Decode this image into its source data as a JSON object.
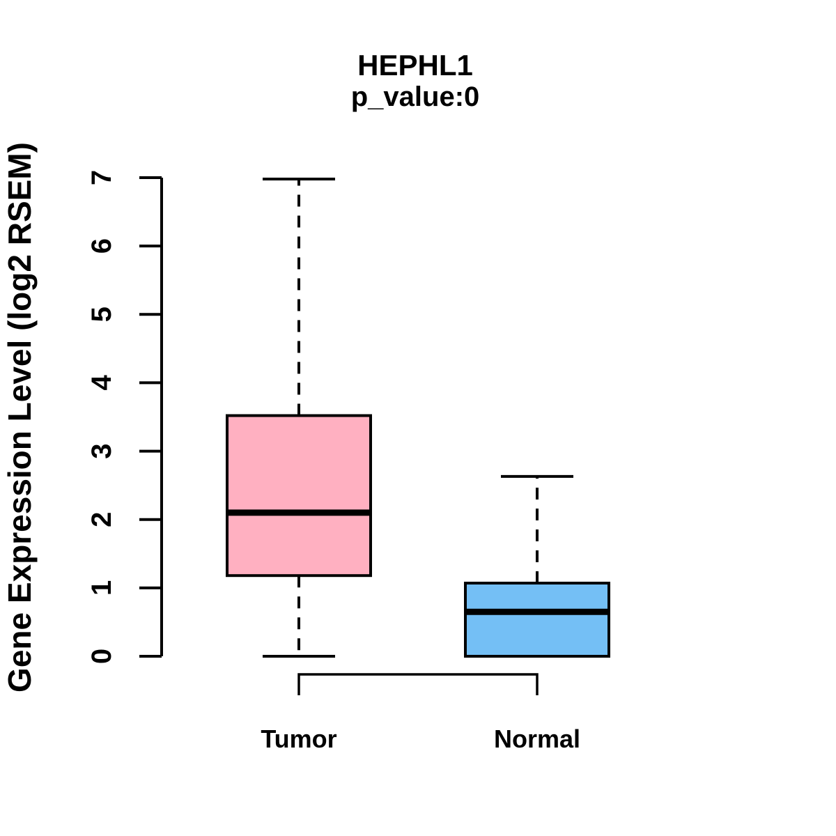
{
  "chart": {
    "title": "HEPHL1",
    "subtitle": "p_value:0",
    "ylabel": "Gene Expression Level (log2 RSEM)"
  },
  "chart_data": {
    "type": "boxplot",
    "title": "HEPHL1",
    "subtitle": "p_value:0",
    "xlabel": "",
    "ylabel": "Gene Expression Level (log2 RSEM)",
    "ylim": [
      0,
      7
    ],
    "yticks": [
      0,
      1,
      2,
      3,
      4,
      5,
      6,
      7
    ],
    "grid": false,
    "legend": "none",
    "categories": [
      "Tumor",
      "Normal"
    ],
    "series": [
      {
        "name": "Tumor",
        "min": 0,
        "q1": 1.18,
        "median": 2.1,
        "q3": 3.52,
        "max": 6.98,
        "fill_color": "#FFB0C1",
        "border_color": "#000000"
      },
      {
        "name": "Normal",
        "min": 0,
        "q1": 0,
        "median": 0.65,
        "q3": 1.07,
        "max": 2.63,
        "fill_color": "#74BFF5",
        "border_color": "#000000"
      }
    ],
    "comparison_bracket": {
      "from": "Tumor",
      "to": "Normal"
    },
    "colors": {
      "axis": "#000000",
      "text": "#000000",
      "background": "#ffffff"
    }
  }
}
